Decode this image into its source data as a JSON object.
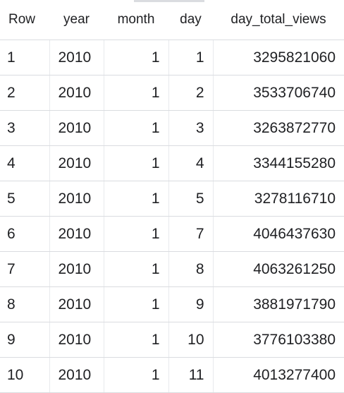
{
  "table": {
    "columns": [
      "Row",
      "year",
      "month",
      "day",
      "day_total_views"
    ],
    "rows": [
      {
        "row": "1",
        "year": "2010",
        "month": "1",
        "day": "1",
        "day_total_views": "3295821060"
      },
      {
        "row": "2",
        "year": "2010",
        "month": "1",
        "day": "2",
        "day_total_views": "3533706740"
      },
      {
        "row": "3",
        "year": "2010",
        "month": "1",
        "day": "3",
        "day_total_views": "3263872770"
      },
      {
        "row": "4",
        "year": "2010",
        "month": "1",
        "day": "4",
        "day_total_views": "3344155280"
      },
      {
        "row": "5",
        "year": "2010",
        "month": "1",
        "day": "5",
        "day_total_views": "3278116710"
      },
      {
        "row": "6",
        "year": "2010",
        "month": "1",
        "day": "7",
        "day_total_views": "4046437630"
      },
      {
        "row": "7",
        "year": "2010",
        "month": "1",
        "day": "8",
        "day_total_views": "4063261250"
      },
      {
        "row": "8",
        "year": "2010",
        "month": "1",
        "day": "9",
        "day_total_views": "3881971790"
      },
      {
        "row": "9",
        "year": "2010",
        "month": "1",
        "day": "10",
        "day_total_views": "3776103380"
      },
      {
        "row": "10",
        "year": "2010",
        "month": "1",
        "day": "11",
        "day_total_views": "4013277400"
      }
    ]
  },
  "colors": {
    "text": "#202124",
    "border": "#dadce0"
  }
}
